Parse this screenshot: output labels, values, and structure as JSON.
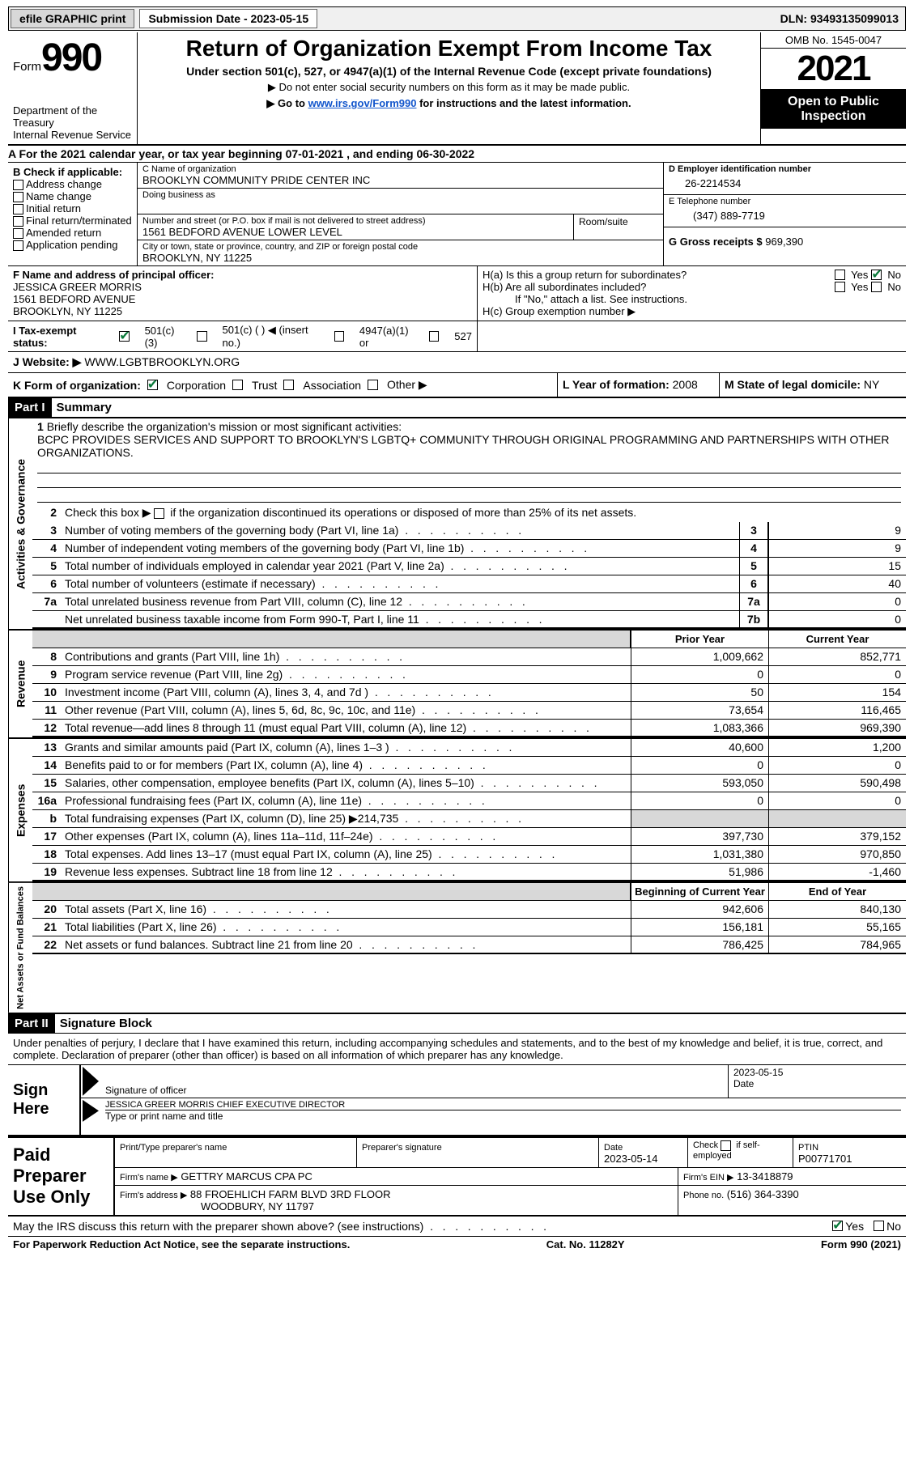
{
  "topbar": {
    "efile_label": "efile GRAPHIC print",
    "submission_label": "Submission Date - 2023-05-15",
    "dln_label": "DLN: 93493135099013"
  },
  "header": {
    "form_word": "Form",
    "form_no": "990",
    "dept": "Department of the Treasury",
    "irs": "Internal Revenue Service",
    "title": "Return of Organization Exempt From Income Tax",
    "subtitle": "Under section 501(c), 527, or 4947(a)(1) of the Internal Revenue Code (except private foundations)",
    "note1": "▶ Do not enter social security numbers on this form as it may be made public.",
    "note2_pre": "▶ Go to ",
    "note2_link": "www.irs.gov/Form990",
    "note2_post": " for instructions and the latest information.",
    "omb": "OMB No. 1545-0047",
    "year": "2021",
    "open_public": "Open to Public Inspection"
  },
  "lineA": "A  For the 2021 calendar year, or tax year beginning 07-01-2021   , and ending 06-30-2022",
  "sectionB": {
    "label": "B Check if applicable:",
    "opts": [
      "Address change",
      "Name change",
      "Initial return",
      "Final return/terminated",
      "Amended return",
      "Application pending"
    ]
  },
  "sectionC": {
    "name_lbl": "C Name of organization",
    "name": "BROOKLYN COMMUNITY PRIDE CENTER INC",
    "dba_lbl": "Doing business as",
    "street_lbl": "Number and street (or P.O. box if mail is not delivered to street address)",
    "street": "1561 BEDFORD AVENUE LOWER LEVEL",
    "room_lbl": "Room/suite",
    "city_lbl": "City or town, state or province, country, and ZIP or foreign postal code",
    "city": "BROOKLYN, NY  11225"
  },
  "sectionD": {
    "lbl": "D Employer identification number",
    "val": "26-2214534"
  },
  "sectionE": {
    "lbl": "E Telephone number",
    "val": "(347) 889-7719"
  },
  "sectionG": {
    "lbl": "G Gross receipts $",
    "val": "969,390"
  },
  "sectionF": {
    "lbl": "F  Name and address of principal officer:",
    "name": "JESSICA GREER MORRIS",
    "addr1": "1561 BEDFORD AVENUE",
    "addr2": "BROOKLYN, NY  11225"
  },
  "sectionH": {
    "ha": "H(a)  Is this a group return for subordinates?",
    "hb": "H(b)  Are all subordinates included?",
    "hb_note": "If \"No,\" attach a list. See instructions.",
    "hc": "H(c)  Group exemption number ▶",
    "yes": "Yes",
    "no": "No"
  },
  "rowI": {
    "lbl": "I     Tax-exempt status:",
    "o1": "501(c)(3)",
    "o2": "501(c) (  ) ◀ (insert no.)",
    "o3": "4947(a)(1) or",
    "o4": "527"
  },
  "rowJ": {
    "lbl": "J    Website: ▶",
    "val": " WWW.LGBTBROOKLYN.ORG"
  },
  "rowK": {
    "lbl": "K Form of organization:",
    "o1": "Corporation",
    "o2": "Trust",
    "o3": "Association",
    "o4": "Other ▶"
  },
  "rowL": {
    "lbl": "L Year of formation:",
    "val": "2008"
  },
  "rowM": {
    "lbl": "M State of legal domicile:",
    "val": "NY"
  },
  "part1": {
    "hdr": "Part I",
    "title": "Summary"
  },
  "summary": {
    "mission_lbl": "Briefly describe the organization's mission or most significant activities:",
    "mission": "BCPC PROVIDES SERVICES AND SUPPORT TO BROOKLYN'S LGBTQ+ COMMUNITY THROUGH ORIGINAL PROGRAMMING AND PARTNERSHIPS WITH OTHER ORGANIZATIONS.",
    "line2": "Check this box ▶         if the organization discontinued its operations or disposed of more than 25% of its net assets.",
    "rows_gov": [
      {
        "n": "3",
        "d": "Number of voting members of the governing body (Part VI, line 1a)",
        "box": "3",
        "v": "9"
      },
      {
        "n": "4",
        "d": "Number of independent voting members of the governing body (Part VI, line 1b)",
        "box": "4",
        "v": "9"
      },
      {
        "n": "5",
        "d": "Total number of individuals employed in calendar year 2021 (Part V, line 2a)",
        "box": "5",
        "v": "15"
      },
      {
        "n": "6",
        "d": "Total number of volunteers (estimate if necessary)",
        "box": "6",
        "v": "40"
      },
      {
        "n": "7a",
        "d": "Total unrelated business revenue from Part VIII, column (C), line 12",
        "box": "7a",
        "v": "0"
      },
      {
        "n": "",
        "d": "Net unrelated business taxable income from Form 990-T, Part I, line 11",
        "box": "7b",
        "v": "0"
      }
    ],
    "prior_hdr": "Prior Year",
    "curr_hdr": "Current Year",
    "rows_rev": [
      {
        "n": "8",
        "d": "Contributions and grants (Part VIII, line 1h)",
        "p": "1,009,662",
        "c": "852,771"
      },
      {
        "n": "9",
        "d": "Program service revenue (Part VIII, line 2g)",
        "p": "0",
        "c": "0"
      },
      {
        "n": "10",
        "d": "Investment income (Part VIII, column (A), lines 3, 4, and 7d )",
        "p": "50",
        "c": "154"
      },
      {
        "n": "11",
        "d": "Other revenue (Part VIII, column (A), lines 5, 6d, 8c, 9c, 10c, and 11e)",
        "p": "73,654",
        "c": "116,465"
      },
      {
        "n": "12",
        "d": "Total revenue—add lines 8 through 11 (must equal Part VIII, column (A), line 12)",
        "p": "1,083,366",
        "c": "969,390"
      }
    ],
    "rows_exp": [
      {
        "n": "13",
        "d": "Grants and similar amounts paid (Part IX, column (A), lines 1–3 )",
        "p": "40,600",
        "c": "1,200"
      },
      {
        "n": "14",
        "d": "Benefits paid to or for members (Part IX, column (A), line 4)",
        "p": "0",
        "c": "0"
      },
      {
        "n": "15",
        "d": "Salaries, other compensation, employee benefits (Part IX, column (A), lines 5–10)",
        "p": "593,050",
        "c": "590,498"
      },
      {
        "n": "16a",
        "d": "Professional fundraising fees (Part IX, column (A), line 11e)",
        "p": "0",
        "c": "0"
      },
      {
        "n": "b",
        "d": "Total fundraising expenses (Part IX, column (D), line 25) ▶214,735",
        "p": "shade",
        "c": "shade"
      },
      {
        "n": "17",
        "d": "Other expenses (Part IX, column (A), lines 11a–11d, 11f–24e)",
        "p": "397,730",
        "c": "379,152"
      },
      {
        "n": "18",
        "d": "Total expenses. Add lines 13–17 (must equal Part IX, column (A), line 25)",
        "p": "1,031,380",
        "c": "970,850"
      },
      {
        "n": "19",
        "d": "Revenue less expenses. Subtract line 18 from line 12",
        "p": "51,986",
        "c": "-1,460"
      }
    ],
    "boy_hdr": "Beginning of Current Year",
    "eoy_hdr": "End of Year",
    "rows_na": [
      {
        "n": "20",
        "d": "Total assets (Part X, line 16)",
        "p": "942,606",
        "c": "840,130"
      },
      {
        "n": "21",
        "d": "Total liabilities (Part X, line 26)",
        "p": "156,181",
        "c": "55,165"
      },
      {
        "n": "22",
        "d": "Net assets or fund balances. Subtract line 21 from line 20",
        "p": "786,425",
        "c": "784,965"
      }
    ],
    "side_gov": "Activities & Governance",
    "side_rev": "Revenue",
    "side_exp": "Expenses",
    "side_na": "Net Assets or Fund Balances"
  },
  "part2": {
    "hdr": "Part II",
    "title": "Signature Block"
  },
  "sig": {
    "declaration": "Under penalties of perjury, I declare that I have examined this return, including accompanying schedules and statements, and to the best of my knowledge and belief, it is true, correct, and complete. Declaration of preparer (other than officer) is based on all information of which preparer has any knowledge.",
    "sign_here": "Sign Here",
    "sig_officer_lbl": "Signature of officer",
    "date_lbl": "Date",
    "sig_date": "2023-05-15",
    "name_title": "JESSICA GREER MORRIS  CHIEF EXECUTIVE DIRECTOR",
    "name_title_lbl": "Type or print name and title"
  },
  "paid": {
    "label": "Paid Preparer Use Only",
    "r1": {
      "name_lbl": "Print/Type preparer's name",
      "sig_lbl": "Preparer's signature",
      "date_lbl": "Date",
      "date": "2023-05-14",
      "chk_lbl": "Check         if self-employed",
      "ptin_lbl": "PTIN",
      "ptin": "P00771701"
    },
    "r2": {
      "firm_lbl": "Firm's name    ▶",
      "firm": "GETTRY MARCUS CPA PC",
      "ein_lbl": "Firm's EIN ▶",
      "ein": "13-3418879"
    },
    "r3": {
      "addr_lbl": "Firm's address ▶",
      "addr1": "88 FROEHLICH FARM BLVD 3RD FLOOR",
      "addr2": "WOODBURY, NY  11797",
      "ph_lbl": "Phone no.",
      "ph": "(516) 364-3390"
    }
  },
  "footer": {
    "discuss": "May the IRS discuss this return with the preparer shown above? (see instructions)",
    "yes": "Yes",
    "no": "No",
    "paperwork": "For Paperwork Reduction Act Notice, see the separate instructions.",
    "cat": "Cat. No. 11282Y",
    "formref": "Form 990 (2021)"
  },
  "colors": {
    "brand_green": "#0a7a3a",
    "link_blue": "#1155cc"
  }
}
